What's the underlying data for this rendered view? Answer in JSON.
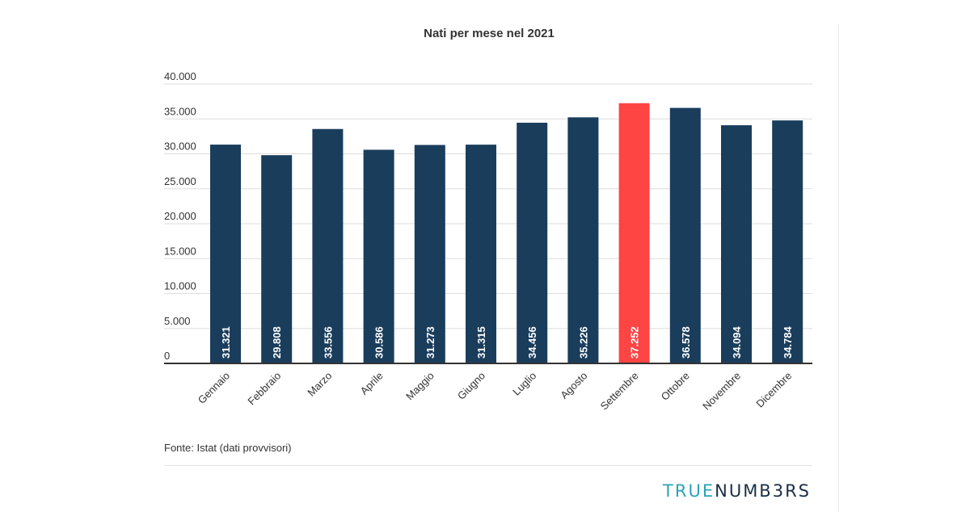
{
  "chart_data": {
    "type": "bar",
    "title": "Nati per mese nel 2021",
    "xlabel": "",
    "ylabel": "",
    "categories": [
      "Gennaio",
      "Febbraio",
      "Marzo",
      "Aprile",
      "Maggio",
      "Giugno",
      "Luglio",
      "Agosto",
      "Settembre",
      "Ottobre",
      "Novembre",
      "Dicembre"
    ],
    "values": [
      31321,
      29808,
      33556,
      30586,
      31273,
      31315,
      34456,
      35226,
      37252,
      36578,
      34094,
      34784
    ],
    "value_labels": [
      "31.321",
      "29.808",
      "33.556",
      "30.586",
      "31.273",
      "31.315",
      "34.456",
      "35.226",
      "37.252",
      "36.578",
      "34.094",
      "34.784"
    ],
    "y_ticks": [
      0,
      5000,
      10000,
      15000,
      20000,
      25000,
      30000,
      35000,
      40000
    ],
    "y_tick_labels": [
      "0",
      "5.000",
      "10.000",
      "15.000",
      "20.000",
      "25.000",
      "30.000",
      "35.000",
      "40.000"
    ],
    "ylim": [
      0,
      40000
    ],
    "grid": true,
    "colors": {
      "bar": "#1a3d5c",
      "highlight": "#ff4444",
      "grid": "#dddddd",
      "axis": "#333333"
    },
    "highlight_index": 8
  },
  "source": "Fonte: Istat (dati provvisori)",
  "brand": {
    "part1": "TRUE",
    "part2": "NUMB3RS"
  }
}
